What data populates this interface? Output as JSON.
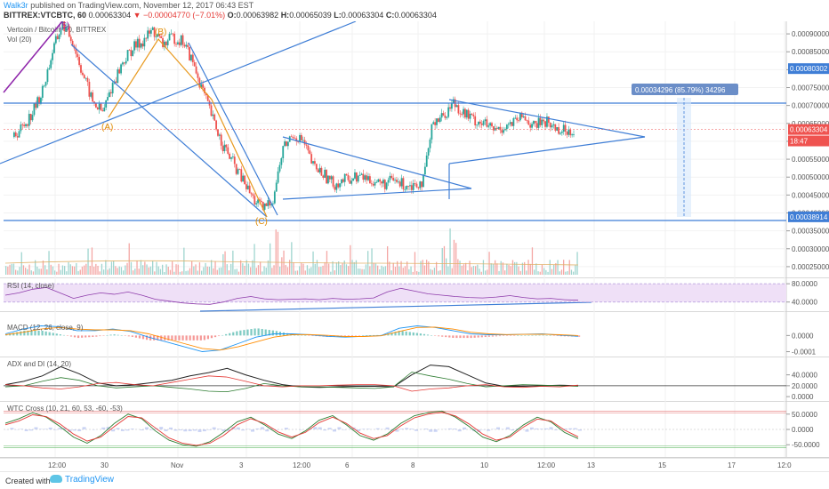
{
  "header": {
    "author": "Walk3r",
    "published_text": "published on TradingView.com, November 12, 2017 06:43 EST",
    "symbol": "BITTREX:VTCBTC, 60",
    "last": "0.00063304",
    "change": "▼ −0.00004770 (−7.01%)",
    "o_label": "O:",
    "o_value": "0.00063982",
    "h_label": "H:",
    "h_value": "0.00065039",
    "l_label": "L:",
    "l_value": "0.00063304",
    "c_label": "C:",
    "c_value": "0.00063304"
  },
  "footer": {
    "created_with": "Created with",
    "brand": "TradingView"
  },
  "colors": {
    "up": "#26a69a",
    "down": "#ef5350",
    "blue_line": "#3f7ed6",
    "rsi_fill": "#efe0f7",
    "rsi_line": "#8e3cab"
  },
  "chart_data": [
    {
      "type": "line",
      "panel": "price",
      "title": "Vertcoin / Bitcoin, 60, BITTREX",
      "indicator_label": "Vol (20)",
      "ylim": [
        0.00022,
        0.000935
      ],
      "y_ticks": [
        "0.00095000",
        "0.00090000",
        "0.00085000",
        "0.00080000",
        "0.00075000",
        "0.00070000",
        "0.00065000",
        "0.00060000",
        "0.00055000",
        "0.00050000",
        "0.00045000",
        "0.00040000",
        "0.00035000",
        "0.00030000",
        "0.00025000"
      ],
      "y_tick_values": [
        0.00095,
        0.0009,
        0.00085,
        0.0008,
        0.00075,
        0.0007,
        0.00065,
        0.0006,
        0.00055,
        0.0005,
        0.00045,
        0.0004,
        0.00035,
        0.0003,
        0.00025
      ],
      "price_labels": [
        {
          "text": "0.00080302",
          "value": 0.00080302,
          "color": "#3f7ed6"
        },
        {
          "text": "0.00063304",
          "value": 0.00063304,
          "color": "#ef5350"
        },
        {
          "text": "18:47",
          "value": 0.000601,
          "color": "#ef5350"
        },
        {
          "text": "0.00038914",
          "value": 0.00038914,
          "color": "#3f7ed6"
        }
      ],
      "measure_label": "0.00034296 (85.79%) 34296",
      "wave_labels": [
        "(5)",
        "(B)",
        "(A)",
        "(C)"
      ],
      "series": [
        {
          "name": "price",
          "values": [
            0.000612,
            0.00064,
            0.00068,
            0.00074,
            0.00085,
            0.00093,
            0.00088,
            0.00079,
            0.00071,
            0.00068,
            0.00076,
            0.00082,
            0.00086,
            0.00088,
            0.00091,
            0.00087,
            0.00089,
            0.00088,
            0.00082,
            0.00074,
            0.00066,
            0.00059,
            0.00054,
            0.00049,
            0.00044,
            0.00041,
            0.00044,
            0.00058,
            0.00062,
            0.0006,
            0.00053,
            0.00051,
            0.00048,
            0.00049,
            0.0005,
            0.0005,
            0.00049,
            0.00048,
            0.00049,
            0.00048,
            0.00048,
            0.00049,
            0.00066,
            0.00067,
            0.00071,
            0.00068,
            0.00066,
            0.00065,
            0.00063,
            0.00064,
            0.00065,
            0.00067,
            0.00064,
            0.00066,
            0.00064,
            0.00063,
            0.000633
          ]
        }
      ]
    },
    {
      "type": "line",
      "panel": "rsi",
      "label": "RSI (14, close)",
      "ylim": [
        20,
        90
      ],
      "y_ticks": [
        "80.0000",
        "40.0000"
      ],
      "y_tick_values": [
        80,
        40
      ],
      "series": [
        {
          "name": "RSI",
          "values": [
            55,
            60,
            68,
            72,
            60,
            48,
            55,
            60,
            57,
            62,
            55,
            46,
            42,
            38,
            36,
            35,
            40,
            48,
            52,
            47,
            45,
            46,
            47,
            45,
            48,
            46,
            47,
            49,
            62,
            70,
            64,
            58,
            55,
            52,
            50,
            49,
            51,
            54,
            50,
            47,
            48,
            45,
            44
          ]
        }
      ]
    },
    {
      "type": "line",
      "panel": "macd",
      "label": "MACD (12, 26, close, 9)",
      "ylim": [
        -0.00013,
        9e-05
      ],
      "y_ticks": [
        "0.0000",
        "-0.0001"
      ],
      "y_tick_values": [
        0,
        -0.0001
      ],
      "series": [
        {
          "name": "MACD",
          "values": [
            1e-05,
            4e-05,
            6e-05,
            5.5e-05,
            3e-05,
            3e-05,
            4e-05,
            2.5e-05,
            -1e-05,
            -4e-05,
            -7e-05,
            -0.0001,
            -9e-05,
            -5e-05,
            -1e-05,
            1e-05,
            1e-05,
            5e-06,
            -5e-06,
            -1e-05,
            -5e-06,
            0,
            4.5e-05,
            6e-05,
            5e-05,
            3e-05,
            1e-05,
            5e-06,
            5e-06,
            8e-06,
            1e-05,
            2e-06,
            -5e-06
          ]
        },
        {
          "name": "Signal",
          "values": [
            5e-06,
            2e-05,
            4e-05,
            5e-05,
            4e-05,
            3.5e-05,
            3.5e-05,
            3e-05,
            1e-05,
            -2e-05,
            -5e-05,
            -8e-05,
            -9e-05,
            -7e-05,
            -4e-05,
            -1e-05,
            5e-06,
            6e-06,
            1e-06,
            -6e-06,
            -6e-06,
            -2e-06,
            2.5e-05,
            5e-05,
            5.2e-05,
            4e-05,
            2e-05,
            1e-05,
            6e-06,
            7e-06,
            8e-06,
            5e-06,
            0
          ]
        }
      ]
    },
    {
      "type": "line",
      "panel": "adx",
      "label": "ADX and DI (14, 20)",
      "ylim": [
        -8,
        72
      ],
      "y_ticks": [
        "40.0000",
        "20.0000",
        "0.0000"
      ],
      "y_tick_values": [
        40,
        20,
        0
      ],
      "series": [
        {
          "name": "ADX",
          "values": [
            22,
            28,
            38,
            55,
            42,
            25,
            20,
            22,
            26,
            30,
            38,
            44,
            52,
            40,
            30,
            22,
            18,
            17,
            18,
            19,
            19,
            18,
            40,
            58,
            55,
            40,
            25,
            19,
            19,
            20,
            21,
            20
          ]
        },
        {
          "name": "+DI",
          "values": [
            18,
            20,
            28,
            35,
            30,
            20,
            16,
            18,
            20,
            17,
            14,
            10,
            9,
            15,
            24,
            20,
            18,
            18,
            17,
            16,
            15,
            18,
            45,
            38,
            32,
            24,
            18,
            20,
            22,
            21,
            20,
            19
          ]
        },
        {
          "name": "-DI",
          "values": [
            22,
            20,
            16,
            14,
            18,
            24,
            26,
            22,
            20,
            26,
            32,
            38,
            36,
            28,
            20,
            18,
            20,
            20,
            21,
            22,
            22,
            20,
            10,
            14,
            16,
            20,
            22,
            18,
            17,
            19,
            18,
            21
          ]
        }
      ]
    },
    {
      "type": "line",
      "panel": "stoch",
      "label": "WTC Cross (10, 21, 60, 53, -60, -53)",
      "ylim": [
        -90,
        90
      ],
      "y_ticks": [
        "50.0000",
        "0.0000",
        "-50.0000"
      ],
      "y_tick_values": [
        50,
        0,
        -50
      ],
      "series": [
        {
          "name": "WT1",
          "values": [
            20,
            35,
            55,
            40,
            10,
            -25,
            -45,
            -20,
            20,
            50,
            35,
            -5,
            -35,
            -50,
            -55,
            -40,
            -10,
            25,
            40,
            15,
            -15,
            -30,
            -5,
            30,
            45,
            15,
            -20,
            -35,
            -15,
            20,
            45,
            55,
            60,
            40,
            10,
            -25,
            -40,
            -20,
            15,
            40,
            25,
            -10,
            -30
          ]
        },
        {
          "name": "WT2",
          "values": [
            15,
            28,
            48,
            42,
            18,
            -15,
            -38,
            -25,
            10,
            42,
            38,
            5,
            -28,
            -45,
            -52,
            -45,
            -20,
            15,
            35,
            20,
            -8,
            -25,
            -10,
            22,
            40,
            20,
            -12,
            -30,
            -20,
            12,
            38,
            50,
            56,
            44,
            18,
            -15,
            -35,
            -25,
            8,
            34,
            28,
            -2,
            -24
          ]
        }
      ]
    }
  ],
  "x_axis": {
    "labels": [
      "12:00",
      "30",
      "Nov",
      "3",
      "12:00",
      "6",
      "8",
      "10",
      "12:00",
      "13",
      "15",
      "17",
      "12:0"
    ]
  }
}
